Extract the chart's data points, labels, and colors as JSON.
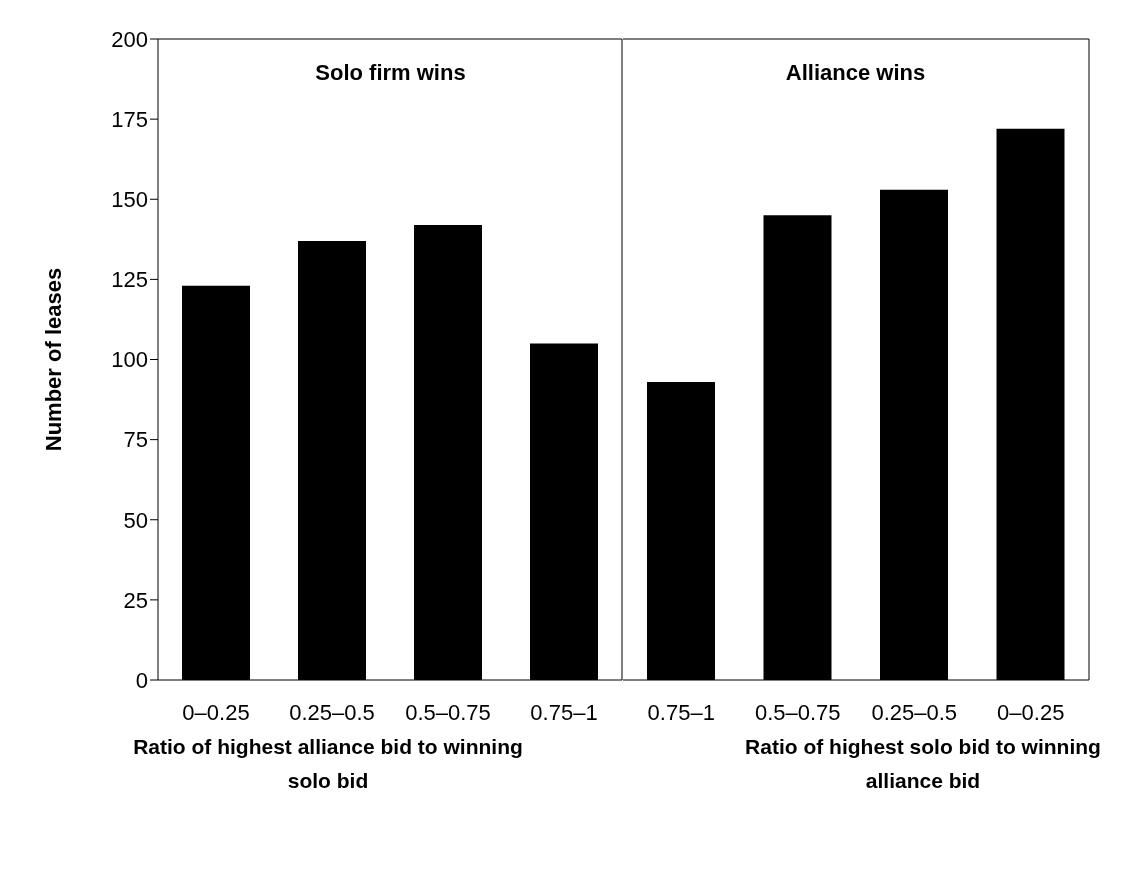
{
  "chart_data": [
    {
      "type": "bar",
      "title": "Solo firm wins",
      "ylabel": "Number of leases",
      "xlabel": "Ratio of highest alliance bid to winning solo bid",
      "categories": [
        "0–0.25",
        "0.25–0.5",
        "0.5–0.75",
        "0.75–1"
      ],
      "values": [
        123,
        137,
        142,
        105
      ],
      "color": "#000000",
      "ylim": [
        0,
        200
      ],
      "yticks": [
        0,
        25,
        50,
        75,
        100,
        125,
        150,
        175,
        200
      ],
      "grid": false
    },
    {
      "type": "bar",
      "title": "Alliance wins",
      "xlabel": "Ratio of highest solo bid to winning alliance bid",
      "categories": [
        "0.75–1",
        "0.5–0.75",
        "0.25–0.5",
        "0–0.25"
      ],
      "values": [
        93,
        145,
        153,
        172
      ],
      "color": "#000000",
      "ylim": [
        0,
        200
      ],
      "yticks": [
        0,
        25,
        50,
        75,
        100,
        125,
        150,
        175,
        200
      ],
      "grid": false,
      "tick_labels": "x"
    }
  ]
}
